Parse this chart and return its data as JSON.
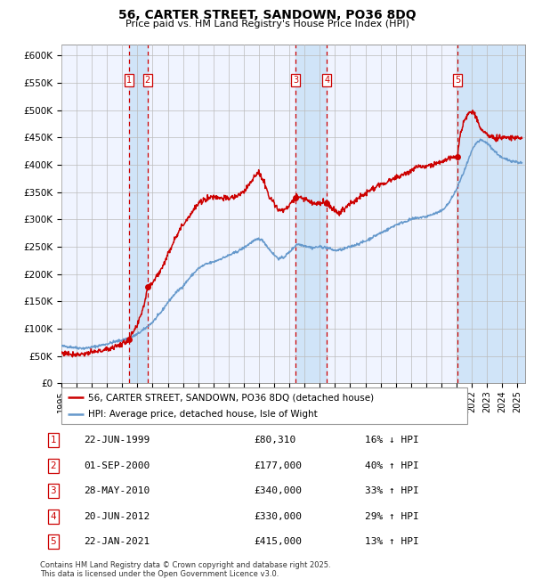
{
  "title": "56, CARTER STREET, SANDOWN, PO36 8DQ",
  "subtitle": "Price paid vs. HM Land Registry's House Price Index (HPI)",
  "red_line_label": "56, CARTER STREET, SANDOWN, PO36 8DQ (detached house)",
  "blue_line_label": "HPI: Average price, detached house, Isle of Wight",
  "footer": "Contains HM Land Registry data © Crown copyright and database right 2025.\nThis data is licensed under the Open Government Licence v3.0.",
  "ylim": [
    0,
    620000
  ],
  "yticks": [
    0,
    50000,
    100000,
    150000,
    200000,
    250000,
    300000,
    350000,
    400000,
    450000,
    500000,
    550000,
    600000
  ],
  "ytick_labels": [
    "£0",
    "£50K",
    "£100K",
    "£150K",
    "£200K",
    "£250K",
    "£300K",
    "£350K",
    "£400K",
    "£450K",
    "£500K",
    "£550K",
    "£600K"
  ],
  "transactions": [
    {
      "id": 1,
      "date": "1999-06-22",
      "price": 80310,
      "pct": "16%",
      "dir": "↓",
      "x_num": 1999.47
    },
    {
      "id": 2,
      "date": "2000-09-01",
      "price": 177000,
      "pct": "40%",
      "dir": "↑",
      "x_num": 2000.67
    },
    {
      "id": 3,
      "date": "2010-05-28",
      "price": 340000,
      "pct": "33%",
      "dir": "↑",
      "x_num": 2010.41
    },
    {
      "id": 4,
      "date": "2012-06-20",
      "price": 330000,
      "pct": "29%",
      "dir": "↑",
      "x_num": 2012.47
    },
    {
      "id": 5,
      "date": "2021-01-22",
      "price": 415000,
      "pct": "13%",
      "dir": "↑",
      "x_num": 2021.06
    }
  ],
  "transaction_display": [
    {
      "id": 1,
      "date_str": "22-JUN-1999",
      "price_str": "£80,310",
      "pct_str": "16% ↓ HPI"
    },
    {
      "id": 2,
      "date_str": "01-SEP-2000",
      "price_str": "£177,000",
      "pct_str": "40% ↑ HPI"
    },
    {
      "id": 3,
      "date_str": "28-MAY-2010",
      "price_str": "£340,000",
      "pct_str": "33% ↑ HPI"
    },
    {
      "id": 4,
      "date_str": "20-JUN-2012",
      "price_str": "£330,000",
      "pct_str": "29% ↑ HPI"
    },
    {
      "id": 5,
      "date_str": "22-JAN-2021",
      "price_str": "£415,000",
      "pct_str": "13% ↑ HPI"
    }
  ],
  "xmin": 1995.0,
  "xmax": 2025.5,
  "background_color": "#ffffff",
  "plot_bg_color": "#f0f4ff",
  "grid_color": "#bbbbbb",
  "red_color": "#cc0000",
  "blue_color": "#6699cc",
  "dashed_color": "#cc0000",
  "shade_color": "#d0e4f8"
}
